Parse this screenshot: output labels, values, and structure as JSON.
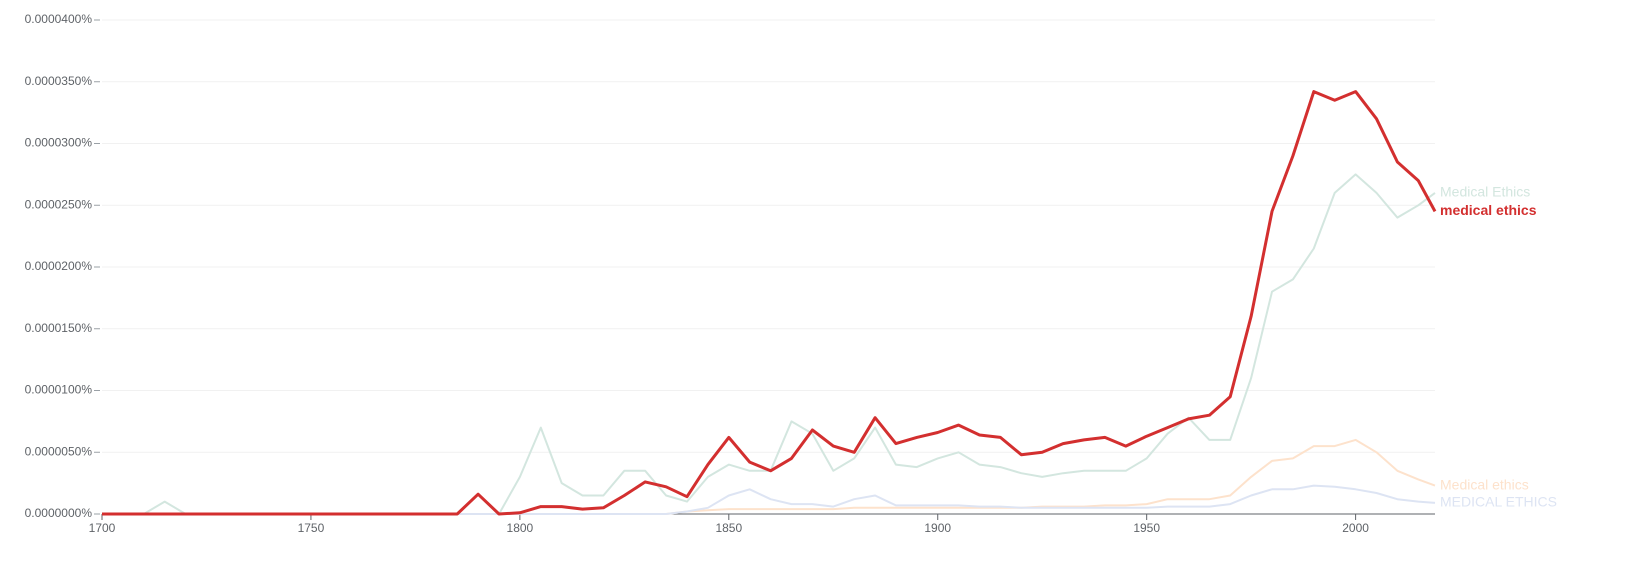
{
  "chart_data": {
    "type": "line",
    "x": [
      1700,
      1705,
      1710,
      1715,
      1720,
      1725,
      1730,
      1735,
      1740,
      1745,
      1750,
      1755,
      1760,
      1765,
      1770,
      1775,
      1780,
      1785,
      1790,
      1795,
      1800,
      1805,
      1810,
      1815,
      1820,
      1825,
      1830,
      1835,
      1840,
      1845,
      1850,
      1855,
      1860,
      1865,
      1870,
      1875,
      1880,
      1885,
      1890,
      1895,
      1900,
      1905,
      1910,
      1915,
      1920,
      1925,
      1930,
      1935,
      1940,
      1945,
      1950,
      1955,
      1960,
      1965,
      1970,
      1975,
      1980,
      1985,
      1990,
      1995,
      2000,
      2005,
      2010,
      2015,
      2019
    ],
    "series": [
      {
        "name": "Medical Ethics",
        "color": "#d3e6df",
        "values": [
          0,
          0,
          0,
          1e-06,
          0,
          0,
          0,
          0,
          0,
          0,
          0,
          0,
          0,
          0,
          0,
          0,
          0,
          0,
          0,
          0,
          3e-06,
          7e-06,
          2.5e-06,
          1.5e-06,
          1.5e-06,
          3.5e-06,
          3.5e-06,
          1.5e-06,
          1e-06,
          3e-06,
          4e-06,
          3.5e-06,
          3.5e-06,
          7.5e-06,
          6.5e-06,
          3.5e-06,
          4.5e-06,
          7e-06,
          4e-06,
          3.8e-06,
          4.5e-06,
          5e-06,
          4e-06,
          3.8e-06,
          3.3e-06,
          3e-06,
          3.3e-06,
          3.5e-06,
          3.5e-06,
          3.5e-06,
          4.5e-06,
          6.5e-06,
          7.8e-06,
          6e-06,
          6e-06,
          1.1e-05,
          1.8e-05,
          1.9e-05,
          2.15e-05,
          2.6e-05,
          2.75e-05,
          2.6e-05,
          2.4e-05,
          2.5e-05,
          2.6e-05
        ]
      },
      {
        "name": "medical ethics",
        "color": "#d32f2f",
        "values": [
          0,
          0,
          0,
          0,
          0,
          0,
          0,
          0,
          0,
          0,
          0,
          0,
          0,
          0,
          0,
          0,
          0,
          0,
          1.6e-06,
          0,
          1e-07,
          6e-07,
          6e-07,
          4e-07,
          5e-07,
          1.5e-06,
          2.6e-06,
          2.2e-06,
          1.4e-06,
          4e-06,
          6.2e-06,
          4.2e-06,
          3.5e-06,
          4.5e-06,
          6.8e-06,
          5.5e-06,
          5e-06,
          7.8e-06,
          5.7e-06,
          6.2e-06,
          6.6e-06,
          7.2e-06,
          6.4e-06,
          6.2e-06,
          4.8e-06,
          5e-06,
          5.7e-06,
          6e-06,
          6.2e-06,
          5.5e-06,
          6.3e-06,
          7e-06,
          7.7e-06,
          8e-06,
          9.5e-06,
          1.6e-05,
          2.45e-05,
          2.9e-05,
          3.42e-05,
          3.35e-05,
          3.42e-05,
          3.2e-05,
          2.85e-05,
          2.7e-05,
          2.45e-05
        ]
      },
      {
        "name": "Medical ethics",
        "color": "#fde2cc",
        "values": [
          0,
          0,
          0,
          0,
          0,
          0,
          0,
          0,
          0,
          0,
          0,
          0,
          0,
          0,
          0,
          0,
          0,
          0,
          0,
          0,
          0,
          0,
          0,
          0,
          0,
          0,
          0,
          0,
          2e-07,
          3e-07,
          4e-07,
          4e-07,
          4e-07,
          4e-07,
          4e-07,
          4e-07,
          5e-07,
          5e-07,
          5e-07,
          5e-07,
          5e-07,
          5e-07,
          5e-07,
          5e-07,
          5e-07,
          6e-07,
          6e-07,
          6e-07,
          7e-07,
          7e-07,
          8e-07,
          1.2e-06,
          1.2e-06,
          1.2e-06,
          1.5e-06,
          3e-06,
          4.3e-06,
          4.5e-06,
          5.5e-06,
          5.5e-06,
          6e-06,
          5e-06,
          3.5e-06,
          2.8e-06,
          2.3e-06
        ]
      },
      {
        "name": "MEDICAL ETHICS",
        "color": "#dde4f3",
        "values": [
          0,
          0,
          0,
          0,
          0,
          0,
          0,
          0,
          0,
          0,
          0,
          0,
          0,
          0,
          0,
          0,
          0,
          0,
          0,
          0,
          0,
          0,
          0,
          0,
          0,
          0,
          0,
          0,
          2e-07,
          5e-07,
          1.5e-06,
          2e-06,
          1.2e-06,
          8e-07,
          8e-07,
          6e-07,
          1.2e-06,
          1.5e-06,
          7e-07,
          7e-07,
          7e-07,
          7e-07,
          6e-07,
          6e-07,
          5e-07,
          5e-07,
          5e-07,
          5e-07,
          5e-07,
          5e-07,
          5e-07,
          6e-07,
          6e-07,
          6e-07,
          8e-07,
          1.5e-06,
          2e-06,
          2e-06,
          2.3e-06,
          2.2e-06,
          2e-06,
          1.7e-06,
          1.2e-06,
          1e-06,
          9e-07
        ]
      }
    ],
    "xlim": [
      1700,
      2019
    ],
    "xticks": [
      1700,
      1750,
      1800,
      1850,
      1900,
      1950,
      2000
    ],
    "ylim": [
      0,
      4e-05
    ],
    "yticks": [
      {
        "value": 0,
        "label": "0.0000000%"
      },
      {
        "value": 5e-06,
        "label": "0.0000050%"
      },
      {
        "value": 1e-05,
        "label": "0.0000100%"
      },
      {
        "value": 1.5e-05,
        "label": "0.0000150%"
      },
      {
        "value": 2e-05,
        "label": "0.0000200%"
      },
      {
        "value": 2.5e-05,
        "label": "0.0000250%"
      },
      {
        "value": 3e-05,
        "label": "0.0000300%"
      },
      {
        "value": 3.5e-05,
        "label": "0.0000350%"
      },
      {
        "value": 4e-05,
        "label": "0.0000400%"
      }
    ],
    "grid": true
  }
}
